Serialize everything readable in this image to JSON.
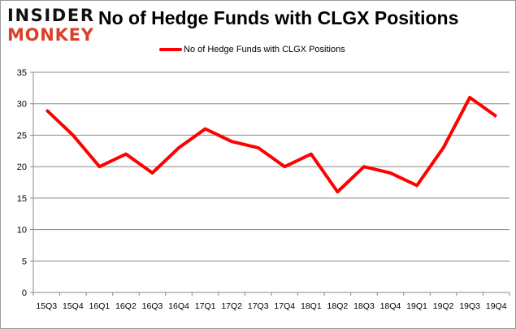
{
  "logo": {
    "line1": "INSIDER",
    "line2": "MONKEY"
  },
  "chart_data": {
    "type": "line",
    "title": "No of Hedge Funds with CLGX Positions",
    "xlabel": "",
    "ylabel": "",
    "categories": [
      "15Q3",
      "15Q4",
      "16Q1",
      "16Q2",
      "16Q3",
      "16Q4",
      "17Q1",
      "17Q2",
      "17Q3",
      "17Q4",
      "18Q1",
      "18Q2",
      "18Q3",
      "18Q4",
      "19Q1",
      "19Q2",
      "19Q3",
      "19Q4"
    ],
    "series": [
      {
        "name": "No of Hedge Funds with CLGX Positions",
        "color": "#ff0000",
        "values": [
          29,
          25,
          20,
          22,
          19,
          23,
          26,
          24,
          23,
          20,
          22,
          16,
          20,
          19,
          17,
          23,
          31,
          28
        ]
      }
    ],
    "ylim": [
      0,
      35
    ],
    "yticks": [
      0,
      5,
      10,
      15,
      20,
      25,
      30,
      35
    ],
    "grid": true,
    "legend_position": "top-center"
  }
}
